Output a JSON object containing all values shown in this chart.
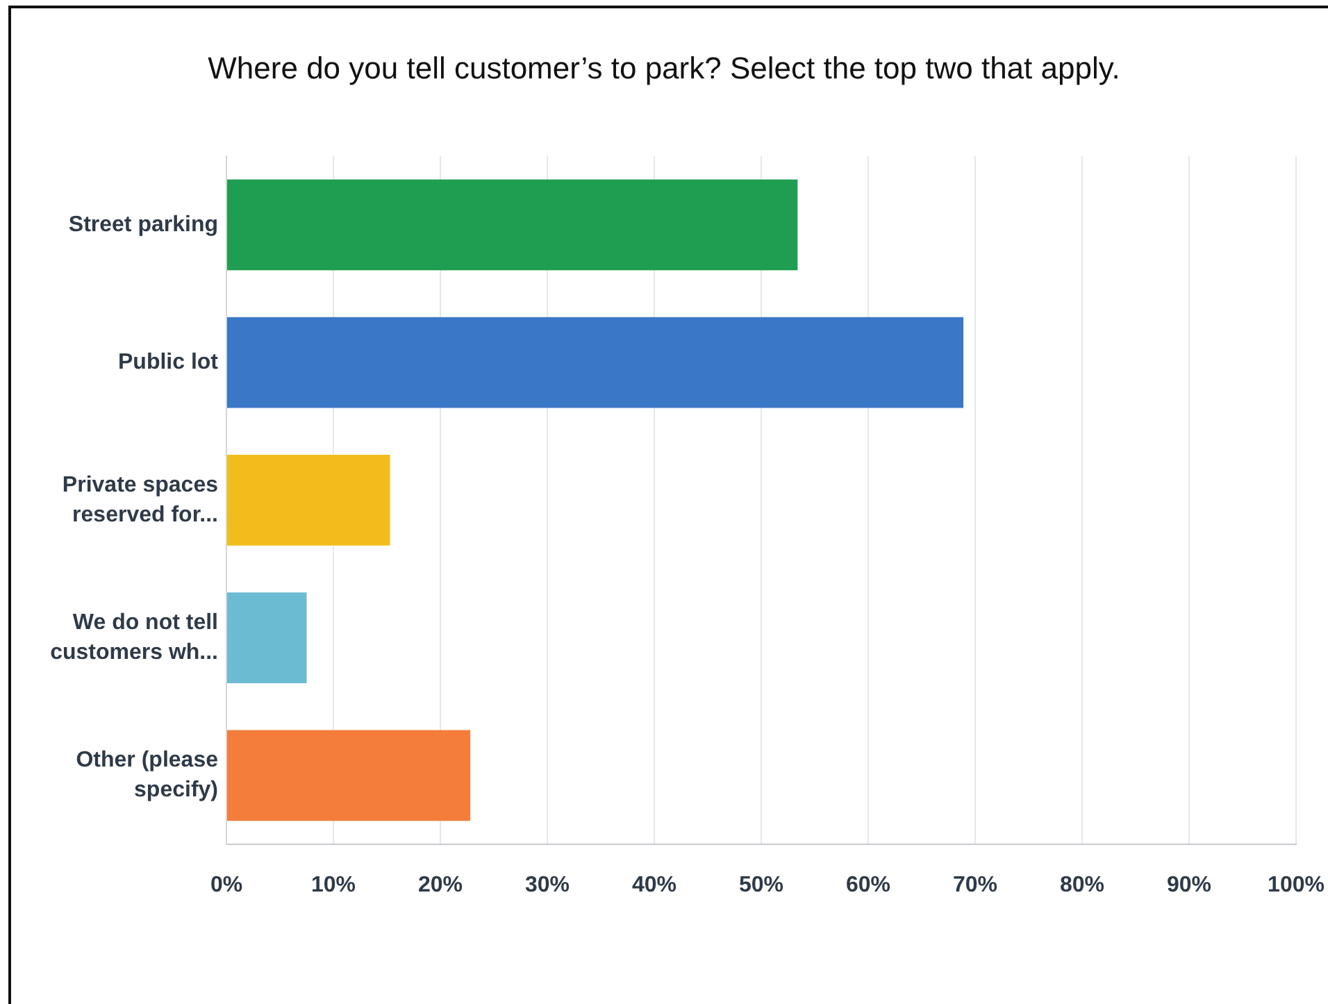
{
  "chart_data": {
    "type": "bar",
    "orientation": "horizontal",
    "title": "Where do you tell customer’s to park? Select the top two that apply.",
    "categories": [
      "Street parking",
      "Public lot",
      "Private spaces reserved for...",
      "We do not tell customers wh...",
      "Other (please specify)"
    ],
    "values": [
      53.4,
      68.9,
      15.3,
      7.5,
      22.8
    ],
    "colors": [
      "#1f9d50",
      "#3a77c6",
      "#f2bd1c",
      "#6bbcd2",
      "#f47d3c"
    ],
    "xlim": [
      0,
      100
    ],
    "xticks": [
      {
        "value": 0,
        "label": "0%"
      },
      {
        "value": 10,
        "label": "10%"
      },
      {
        "value": 20,
        "label": "20%"
      },
      {
        "value": 30,
        "label": "30%"
      },
      {
        "value": 40,
        "label": "40%"
      },
      {
        "value": 50,
        "label": "50%"
      },
      {
        "value": 60,
        "label": "60%"
      },
      {
        "value": 70,
        "label": "70%"
      },
      {
        "value": 80,
        "label": "80%"
      },
      {
        "value": 90,
        "label": "90%"
      },
      {
        "value": 100,
        "label": "100%"
      }
    ],
    "grid": "x"
  }
}
